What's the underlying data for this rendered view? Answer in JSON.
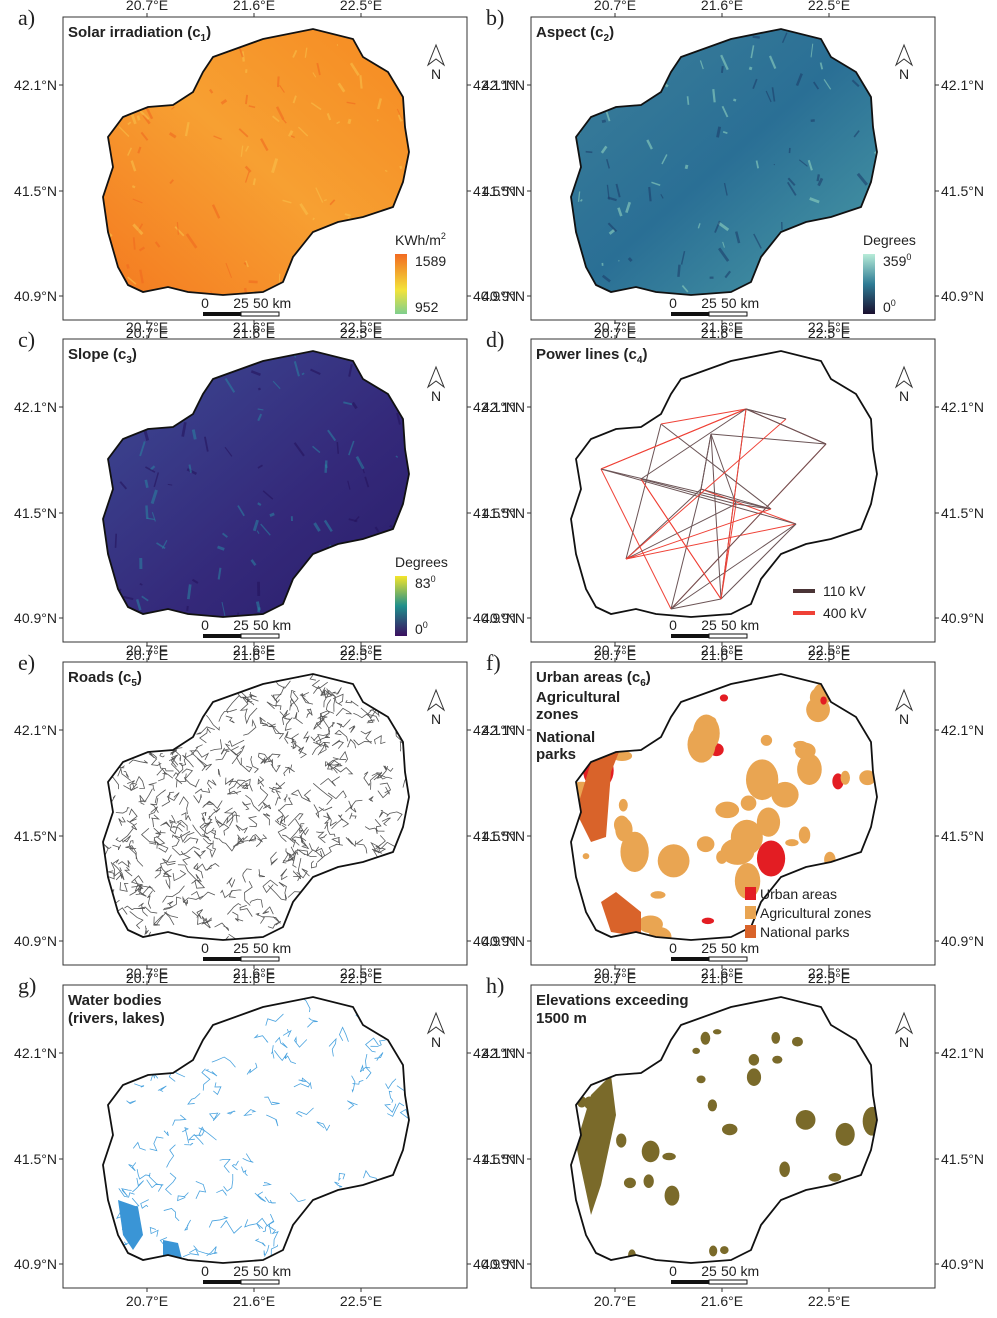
{
  "panels": [
    {
      "letter": "a)",
      "title": "Solar irradiation (c",
      "subscript": "1",
      "title_close": ")",
      "legend": {
        "kind": "colorbar",
        "unit": "KWh/m",
        "unit_sup": "2",
        "max": "1589",
        "min": "952"
      }
    },
    {
      "letter": "b)",
      "title": "Aspect (c",
      "subscript": "2",
      "title_close": ")",
      "legend": {
        "kind": "colorbar",
        "unit": "Degrees",
        "max": "359",
        "max_sup": "0",
        "min": "0",
        "min_sup": "0"
      }
    },
    {
      "letter": "c)",
      "title": "Slope (c",
      "subscript": "3",
      "title_close": ")",
      "legend": {
        "kind": "colorbar",
        "unit": "Degrees",
        "max": "83",
        "max_sup": "0",
        "min": "0",
        "min_sup": "0"
      }
    },
    {
      "letter": "d)",
      "title": "Power lines (c",
      "subscript": "4",
      "title_close": ")",
      "legend": {
        "kind": "lines",
        "items": [
          {
            "label": "110 kV",
            "color": "#4a3436"
          },
          {
            "label": "400 kV",
            "color": "#ef4136"
          }
        ]
      }
    },
    {
      "letter": "e)",
      "title": "Roads (c",
      "subscript": "5",
      "title_close": ")"
    },
    {
      "letter": "f)",
      "title": "Urban areas (c",
      "subscript": "6",
      "title_close": ")",
      "subtitles": [
        [
          "Agricultural",
          "zones"
        ],
        [
          "National",
          "parks"
        ]
      ],
      "legend": {
        "kind": "boxes",
        "items": [
          {
            "label": "Urban areas",
            "color": "#e31d23"
          },
          {
            "label": "Agricultural zones",
            "color": "#e9a552"
          },
          {
            "label": "National parks",
            "color": "#d9632a"
          }
        ]
      }
    },
    {
      "letter": "g)",
      "title_lines": [
        "Water bodies",
        "(rivers, lakes)"
      ]
    },
    {
      "letter": "h)",
      "title_lines": [
        "Elevations exceeding",
        "1500 m"
      ]
    }
  ],
  "lon_labels": [
    "20.7°E",
    "21.6°E",
    "22.5°E"
  ],
  "lat_labels": [
    "42.1°N",
    "41.5°N",
    "40.9°N"
  ],
  "north": "N",
  "scale_labels": [
    "0",
    "25",
    "50 km"
  ]
}
